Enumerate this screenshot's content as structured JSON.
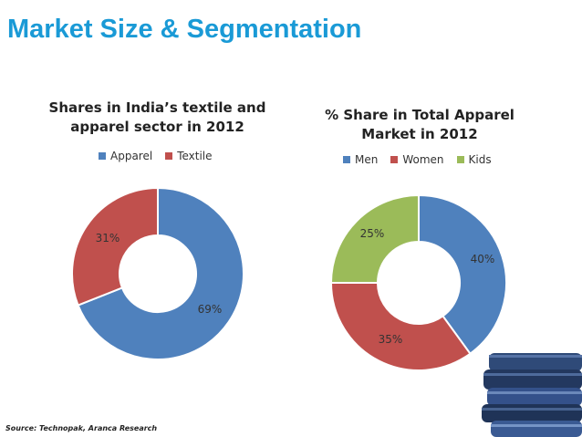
{
  "slide": {
    "title": "Market Size & Segmentation",
    "source": "Source: Technopak, Aranca Research"
  },
  "chart_data": [
    {
      "type": "pie",
      "variant": "donut",
      "title_lines": [
        "Shares in India’s textile and",
        "apparel sector in 2012"
      ],
      "legend_position": "top",
      "slices": [
        {
          "label": "Apparel",
          "value": 69,
          "value_label": "69%",
          "color": "#4f81bd"
        },
        {
          "label": "Textile",
          "value": 31,
          "value_label": "31%",
          "color": "#c0504d"
        }
      ]
    },
    {
      "type": "pie",
      "variant": "donut",
      "title_lines": [
        "% Share in Total Apparel",
        "Market in 2012"
      ],
      "legend_position": "top",
      "slices": [
        {
          "label": "Men",
          "value": 40,
          "value_label": "40%",
          "color": "#4f81bd"
        },
        {
          "label": "Women",
          "value": 35,
          "value_label": "35%",
          "color": "#c0504d"
        },
        {
          "label": "Kids",
          "value": 25,
          "value_label": "25%",
          "color": "#9bbb59"
        }
      ]
    }
  ],
  "image": {
    "subject": "jeans-stack"
  }
}
